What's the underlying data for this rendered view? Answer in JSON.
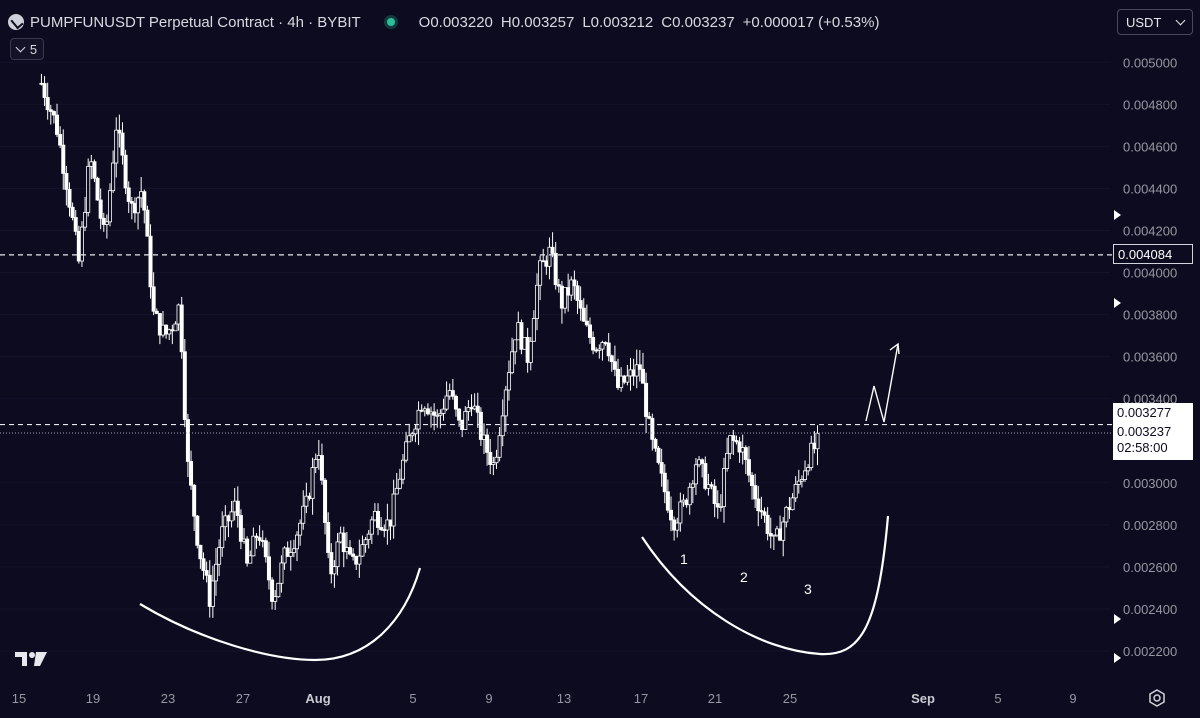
{
  "header": {
    "title": "PUMPFUNUSDT Perpetual Contract · 4h · BYBIT",
    "open_key": "O",
    "open": "0.003220",
    "high_key": "H",
    "high": "0.003257",
    "low_key": "L",
    "low": "0.003212",
    "close_key": "C",
    "close": "0.003237",
    "change": "+0.000017 (+0.53%)"
  },
  "indicators_button": {
    "label": "5"
  },
  "currency_select": {
    "value": "USDT"
  },
  "price_tags": {
    "resistance": "0.004084",
    "neckline": "0.003277",
    "last_price": "0.003237",
    "countdown": "02:58:00"
  },
  "colors": {
    "background": "#0d0b1f",
    "candle": "#ffffff",
    "axis_text": "#9598a1",
    "status": "#2bbf9a"
  },
  "icons": {
    "logo": "tradingview-logo-icon",
    "settings": "gear-icon",
    "status": "live-dot-icon"
  },
  "chart_data": {
    "type": "candlestick",
    "title": "PUMPFUNUSDT Perpetual Contract · 4h · BYBIT",
    "ylim": [
      0.00212,
      0.00522
    ],
    "y_ticks": [
      "0.005000",
      "0.004800",
      "0.004600",
      "0.004400",
      "0.004200",
      "0.004000",
      "0.003800",
      "0.003600",
      "0.003400",
      "0.003000",
      "0.002800",
      "0.002600",
      "0.002400",
      "0.002200"
    ],
    "x_ticks": [
      "15",
      "19",
      "23",
      "27",
      "Aug",
      "5",
      "9",
      "13",
      "17",
      "21",
      "25",
      "Sep",
      "5",
      "9"
    ],
    "price_path": [
      [
        0,
        0.005
      ],
      [
        1.2,
        0.0049
      ],
      [
        2.0,
        0.0047
      ],
      [
        2.6,
        0.0044
      ],
      [
        3.2,
        0.00405
      ],
      [
        3.8,
        0.00455
      ],
      [
        4.6,
        0.00415
      ],
      [
        5.2,
        0.0047
      ],
      [
        6.0,
        0.0043
      ],
      [
        6.6,
        0.0044
      ],
      [
        7.2,
        0.0038
      ],
      [
        7.8,
        0.0037
      ],
      [
        8.2,
        0.00375
      ],
      [
        8.6,
        0.00385
      ],
      [
        9.0,
        0.0031
      ],
      [
        9.6,
        0.0027
      ],
      [
        10.2,
        0.00245
      ],
      [
        10.8,
        0.00275
      ],
      [
        11.6,
        0.0029
      ],
      [
        12.2,
        0.0026
      ],
      [
        12.8,
        0.00278
      ],
      [
        13.6,
        0.00245
      ],
      [
        14.2,
        0.00265
      ],
      [
        14.8,
        0.00275
      ],
      [
        15.4,
        0.0029
      ],
      [
        16.0,
        0.0032
      ],
      [
        16.6,
        0.00255
      ],
      [
        17.2,
        0.00275
      ],
      [
        17.8,
        0.0026
      ],
      [
        18.4,
        0.0027
      ],
      [
        19.0,
        0.00285
      ],
      [
        19.8,
        0.0028
      ],
      [
        20.4,
        0.00305
      ],
      [
        21.0,
        0.00325
      ],
      [
        21.6,
        0.0034
      ],
      [
        22.4,
        0.0033
      ],
      [
        23.0,
        0.00345
      ],
      [
        23.6,
        0.00325
      ],
      [
        24.2,
        0.0034
      ],
      [
        24.8,
        0.0032
      ],
      [
        25.4,
        0.00308
      ],
      [
        26.0,
        0.00345
      ],
      [
        26.6,
        0.00375
      ],
      [
        27.2,
        0.0036
      ],
      [
        27.8,
        0.004
      ],
      [
        28.4,
        0.0041
      ],
      [
        29.0,
        0.00385
      ],
      [
        29.6,
        0.00395
      ],
      [
        30.2,
        0.00375
      ],
      [
        30.8,
        0.00365
      ],
      [
        31.4,
        0.0037
      ],
      [
        32.0,
        0.00345
      ],
      [
        32.6,
        0.0035
      ],
      [
        33.2,
        0.00355
      ],
      [
        33.8,
        0.0032
      ],
      [
        34.4,
        0.003
      ],
      [
        35.0,
        0.00282
      ],
      [
        35.6,
        0.0029
      ],
      [
        36.2,
        0.0031
      ],
      [
        36.8,
        0.003
      ],
      [
        37.4,
        0.00285
      ],
      [
        38.0,
        0.0032
      ],
      [
        38.6,
        0.00318
      ],
      [
        39.2,
        0.00298
      ],
      [
        39.8,
        0.00285
      ],
      [
        40.4,
        0.0027
      ],
      [
        41.0,
        0.00285
      ],
      [
        41.6,
        0.00298
      ],
      [
        42.2,
        0.00312
      ],
      [
        42.8,
        0.0032
      ]
    ],
    "annotations": {
      "horizontal_levels": [
        0.004084,
        0.003277
      ],
      "labels": [
        "1",
        "2",
        "3"
      ]
    }
  }
}
